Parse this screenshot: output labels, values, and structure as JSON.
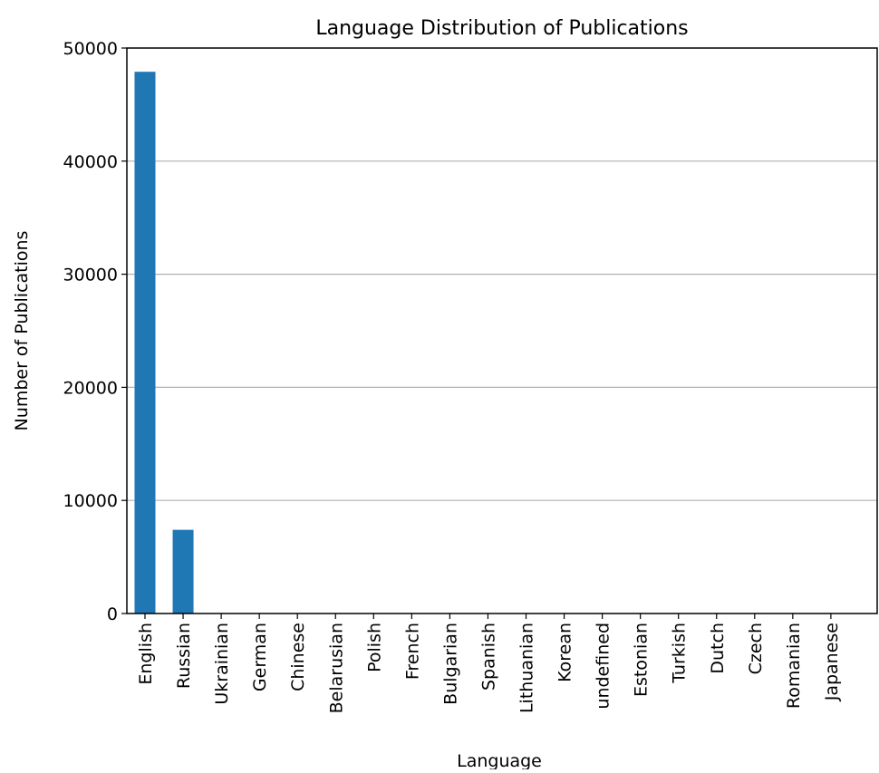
{
  "chart_data": {
    "type": "bar",
    "title": "Language Distribution of Publications",
    "xlabel": "Language",
    "ylabel": "Number of Publications",
    "categories": [
      "English",
      "Russian",
      "Ukrainian",
      "German",
      "Chinese",
      "Belarusian",
      "Polish",
      "French",
      "Bulgarian",
      "Spanish",
      "Lithuanian",
      "Korean",
      "undefined",
      "Estonian",
      "Turkish",
      "Dutch",
      "Czech",
      "Romanian",
      "Japanese"
    ],
    "values": [
      47900,
      7400,
      40,
      25,
      15,
      10,
      8,
      6,
      5,
      4,
      3,
      3,
      2,
      2,
      1,
      1,
      1,
      1,
      1
    ],
    "ylim": [
      0,
      50000
    ],
    "yticks": [
      0,
      10000,
      20000,
      30000,
      40000,
      50000
    ],
    "grid": "y-major",
    "bar_color": "#1f77b4",
    "grid_color": "#b0b0b0"
  }
}
